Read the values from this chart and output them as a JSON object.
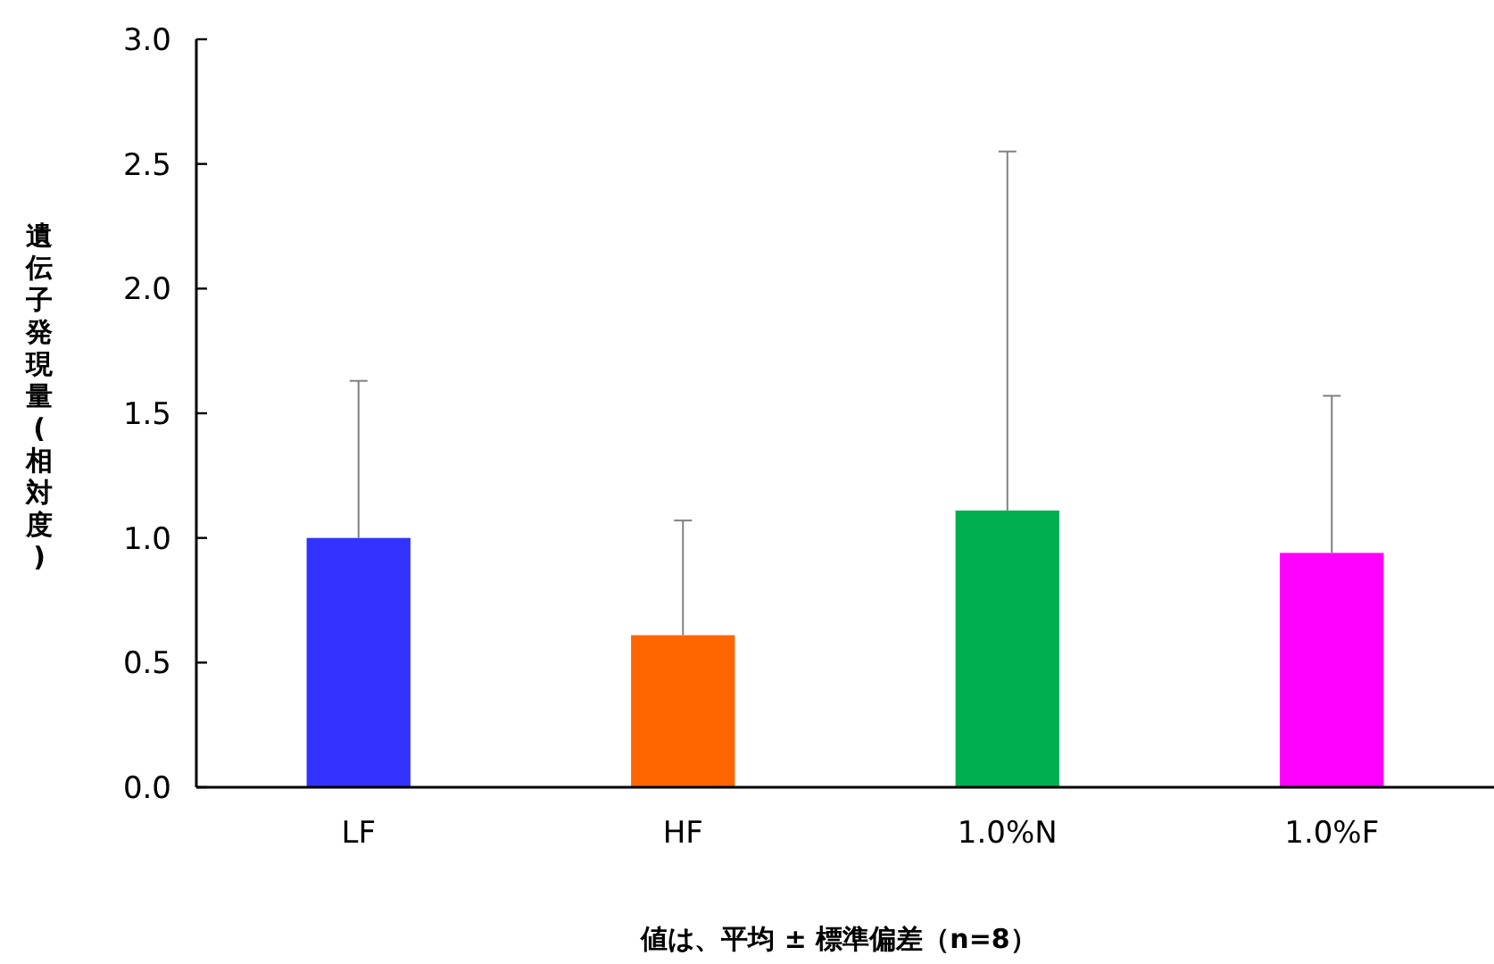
{
  "chart_data": {
    "type": "bar",
    "ylabel": "遺伝子発現量(相対度)",
    "annotations": [
      "値は、平均 ± 標準偏差（n=8）"
    ],
    "categories": [
      "LF",
      "HF",
      "1.0%N",
      "1.0%F"
    ],
    "values": [
      1.0,
      0.61,
      1.11,
      0.94
    ],
    "colors": [
      "#3333ff",
      "#ff6600",
      "#00b050",
      "#ff00ff"
    ],
    "errors": [
      [
        1.0,
        1.63
      ],
      [
        0.61,
        1.07
      ],
      [
        1.11,
        2.55
      ],
      [
        0.94,
        1.57
      ]
    ],
    "ylim": [
      0,
      3
    ],
    "yticks": [
      {
        "value": 0,
        "label": "0.0"
      },
      {
        "value": 0.5,
        "label": "0.5"
      },
      {
        "value": 1,
        "label": "1.0"
      },
      {
        "value": 1.5,
        "label": "1.5"
      },
      {
        "value": 2,
        "label": "2.0"
      },
      {
        "value": 2.5,
        "label": "2.5"
      },
      {
        "value": 3,
        "label": "3.0"
      }
    ]
  }
}
